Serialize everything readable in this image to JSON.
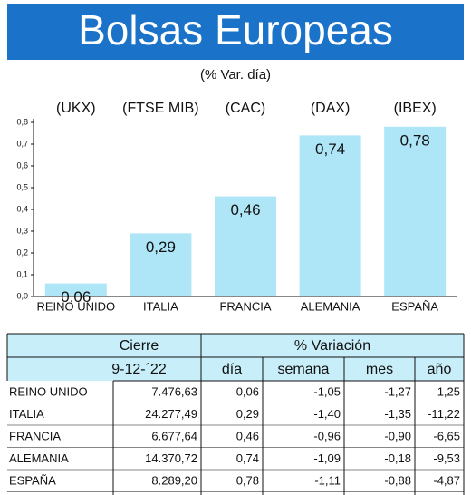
{
  "chart_data": {
    "type": "bar",
    "title": "Bolsas Europeas",
    "subtitle": "(% Var. día)",
    "tickers": [
      "(UKX)",
      "(FTSE MIB)",
      "(CAC)",
      "(DAX)",
      "(IBEX)"
    ],
    "categories": [
      "REINO UNIDO",
      "ITALIA",
      "FRANCIA",
      "ALEMANIA",
      "ESPAÑA"
    ],
    "values": [
      0.06,
      0.29,
      0.46,
      0.74,
      0.78
    ],
    "value_labels": [
      "0,06",
      "0,29",
      "0,46",
      "0,74",
      "0,78"
    ],
    "color": "#aee6f7",
    "ylim": [
      0,
      0.8
    ],
    "yticks": [
      {
        "value": 0,
        "label": "0,0"
      },
      {
        "value": 0.1,
        "label": "0,1"
      },
      {
        "value": 0.2,
        "label": "0,2"
      },
      {
        "value": 0.3,
        "label": "0,3"
      },
      {
        "value": 0.4,
        "label": "0,4"
      },
      {
        "value": 0.5,
        "label": "0,5"
      },
      {
        "value": 0.6,
        "label": "0,6"
      },
      {
        "value": 0.7,
        "label": "0,7"
      },
      {
        "value": 0.8,
        "label": "0,8"
      }
    ],
    "grid": false
  },
  "table": {
    "groups": [
      "Cierre",
      "% Variación"
    ],
    "columns": [
      "9-12-´22",
      "día",
      "semana",
      "mes",
      "año"
    ],
    "rows": [
      [
        "REINO UNIDO",
        "7.476,63",
        "0,06",
        "-1,05",
        "-1,27",
        "1,25"
      ],
      [
        "ITALIA",
        "24.277,49",
        "0,29",
        "-1,40",
        "-1,35",
        "-11,22"
      ],
      [
        "FRANCIA",
        "6.677,64",
        "0,46",
        "-0,96",
        "-0,90",
        "-6,65"
      ],
      [
        "ALEMANIA",
        "14.370,72",
        "0,74",
        "-1,09",
        "-0,18",
        "-9,53"
      ],
      [
        "ESPAÑA",
        "8.289,20",
        "0,78",
        "-1,11",
        "-0,88",
        "-4,87"
      ]
    ]
  }
}
